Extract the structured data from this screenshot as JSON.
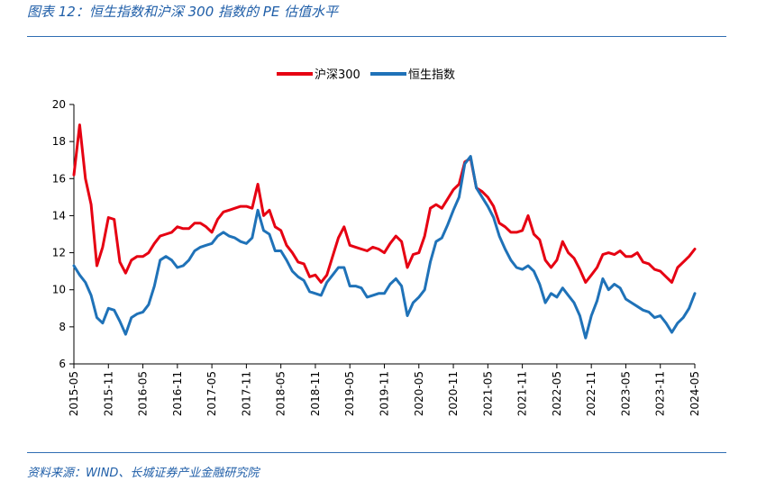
{
  "figure": {
    "title": "图表 12：恒生指数和沪深 300 指数的 PE 估值水平",
    "source": "资料来源：WIND、长城证券产业金融研究院"
  },
  "chart_data": {
    "type": "line",
    "title": "",
    "xlabel": "",
    "ylabel": "",
    "ylim": [
      6,
      20
    ],
    "yticks": [
      6,
      8,
      10,
      12,
      14,
      16,
      18,
      20
    ],
    "xlim": [
      "2015-05",
      "2024-05"
    ],
    "xticks": [
      "2015-05",
      "2015-11",
      "2016-05",
      "2016-11",
      "2017-05",
      "2017-11",
      "2018-05",
      "2018-11",
      "2019-05",
      "2019-11",
      "2020-05",
      "2020-11",
      "2021-05",
      "2021-11",
      "2022-05",
      "2022-11",
      "2023-05",
      "2023-11",
      "2024-05"
    ],
    "grid": false,
    "legend": "top-center",
    "series": [
      {
        "name": "沪深300",
        "color": "#e60012",
        "points": [
          [
            "2015-05",
            16.2
          ],
          [
            "2015-06",
            18.9
          ],
          [
            "2015-07",
            16.0
          ],
          [
            "2015-08",
            14.6
          ],
          [
            "2015-09",
            11.3
          ],
          [
            "2015-10",
            12.3
          ],
          [
            "2015-11",
            13.9
          ],
          [
            "2015-12",
            13.8
          ],
          [
            "2016-01",
            11.5
          ],
          [
            "2016-02",
            10.9
          ],
          [
            "2016-03",
            11.6
          ],
          [
            "2016-04",
            11.8
          ],
          [
            "2016-05",
            11.8
          ],
          [
            "2016-06",
            12.0
          ],
          [
            "2016-07",
            12.5
          ],
          [
            "2016-08",
            12.9
          ],
          [
            "2016-09",
            13.0
          ],
          [
            "2016-10",
            13.1
          ],
          [
            "2016-11",
            13.4
          ],
          [
            "2016-12",
            13.3
          ],
          [
            "2017-01",
            13.3
          ],
          [
            "2017-02",
            13.6
          ],
          [
            "2017-03",
            13.6
          ],
          [
            "2017-04",
            13.4
          ],
          [
            "2017-05",
            13.1
          ],
          [
            "2017-06",
            13.8
          ],
          [
            "2017-07",
            14.2
          ],
          [
            "2017-08",
            14.3
          ],
          [
            "2017-09",
            14.4
          ],
          [
            "2017-10",
            14.5
          ],
          [
            "2017-11",
            14.5
          ],
          [
            "2017-12",
            14.4
          ],
          [
            "2018-01",
            15.7
          ],
          [
            "2018-02",
            14.0
          ],
          [
            "2018-03",
            14.3
          ],
          [
            "2018-04",
            13.4
          ],
          [
            "2018-05",
            13.2
          ],
          [
            "2018-06",
            12.4
          ],
          [
            "2018-07",
            12.0
          ],
          [
            "2018-08",
            11.5
          ],
          [
            "2018-09",
            11.4
          ],
          [
            "2018-10",
            10.7
          ],
          [
            "2018-11",
            10.8
          ],
          [
            "2018-12",
            10.4
          ],
          [
            "2019-01",
            10.8
          ],
          [
            "2019-02",
            11.8
          ],
          [
            "2019-03",
            12.8
          ],
          [
            "2019-04",
            13.4
          ],
          [
            "2019-05",
            12.4
          ],
          [
            "2019-06",
            12.3
          ],
          [
            "2019-07",
            12.2
          ],
          [
            "2019-08",
            12.1
          ],
          [
            "2019-09",
            12.3
          ],
          [
            "2019-10",
            12.2
          ],
          [
            "2019-11",
            12.0
          ],
          [
            "2019-12",
            12.5
          ],
          [
            "2020-01",
            12.9
          ],
          [
            "2020-02",
            12.6
          ],
          [
            "2020-03",
            11.2
          ],
          [
            "2020-04",
            11.9
          ],
          [
            "2020-05",
            12.0
          ],
          [
            "2020-06",
            12.9
          ],
          [
            "2020-07",
            14.4
          ],
          [
            "2020-08",
            14.6
          ],
          [
            "2020-09",
            14.4
          ],
          [
            "2020-10",
            14.9
          ],
          [
            "2020-11",
            15.4
          ],
          [
            "2020-12",
            15.7
          ],
          [
            "2021-01",
            16.9
          ],
          [
            "2021-02",
            17.1
          ],
          [
            "2021-03",
            15.5
          ],
          [
            "2021-04",
            15.3
          ],
          [
            "2021-05",
            15.0
          ],
          [
            "2021-06",
            14.5
          ],
          [
            "2021-07",
            13.6
          ],
          [
            "2021-08",
            13.4
          ],
          [
            "2021-09",
            13.1
          ],
          [
            "2021-10",
            13.1
          ],
          [
            "2021-11",
            13.2
          ],
          [
            "2021-12",
            14.0
          ],
          [
            "2022-01",
            13.0
          ],
          [
            "2022-02",
            12.7
          ],
          [
            "2022-03",
            11.6
          ],
          [
            "2022-04",
            11.2
          ],
          [
            "2022-05",
            11.6
          ],
          [
            "2022-06",
            12.6
          ],
          [
            "2022-07",
            12.0
          ],
          [
            "2022-08",
            11.7
          ],
          [
            "2022-09",
            11.1
          ],
          [
            "2022-10",
            10.4
          ],
          [
            "2022-11",
            10.8
          ],
          [
            "2022-12",
            11.2
          ],
          [
            "2023-01",
            11.9
          ],
          [
            "2023-02",
            12.0
          ],
          [
            "2023-03",
            11.9
          ],
          [
            "2023-04",
            12.1
          ],
          [
            "2023-05",
            11.8
          ],
          [
            "2023-06",
            11.8
          ],
          [
            "2023-07",
            12.0
          ],
          [
            "2023-08",
            11.5
          ],
          [
            "2023-09",
            11.4
          ],
          [
            "2023-10",
            11.1
          ],
          [
            "2023-11",
            11.0
          ],
          [
            "2023-12",
            10.7
          ],
          [
            "2024-01",
            10.4
          ],
          [
            "2024-02",
            11.2
          ],
          [
            "2024-03",
            11.5
          ],
          [
            "2024-04",
            11.8
          ],
          [
            "2024-05",
            12.2
          ]
        ]
      },
      {
        "name": "恒生指数",
        "color": "#1f72b8",
        "points": [
          [
            "2015-05",
            11.3
          ],
          [
            "2015-06",
            10.8
          ],
          [
            "2015-07",
            10.4
          ],
          [
            "2015-08",
            9.7
          ],
          [
            "2015-09",
            8.5
          ],
          [
            "2015-10",
            8.2
          ],
          [
            "2015-11",
            9.0
          ],
          [
            "2015-12",
            8.9
          ],
          [
            "2016-01",
            8.3
          ],
          [
            "2016-02",
            7.6
          ],
          [
            "2016-03",
            8.5
          ],
          [
            "2016-04",
            8.7
          ],
          [
            "2016-05",
            8.8
          ],
          [
            "2016-06",
            9.2
          ],
          [
            "2016-07",
            10.2
          ],
          [
            "2016-08",
            11.6
          ],
          [
            "2016-09",
            11.8
          ],
          [
            "2016-10",
            11.6
          ],
          [
            "2016-11",
            11.2
          ],
          [
            "2016-12",
            11.3
          ],
          [
            "2017-01",
            11.6
          ],
          [
            "2017-02",
            12.1
          ],
          [
            "2017-03",
            12.3
          ],
          [
            "2017-04",
            12.4
          ],
          [
            "2017-05",
            12.5
          ],
          [
            "2017-06",
            12.9
          ],
          [
            "2017-07",
            13.1
          ],
          [
            "2017-08",
            12.9
          ],
          [
            "2017-09",
            12.8
          ],
          [
            "2017-10",
            12.6
          ],
          [
            "2017-11",
            12.5
          ],
          [
            "2017-12",
            12.8
          ],
          [
            "2018-01",
            14.3
          ],
          [
            "2018-02",
            13.2
          ],
          [
            "2018-03",
            13.0
          ],
          [
            "2018-04",
            12.1
          ],
          [
            "2018-05",
            12.1
          ],
          [
            "2018-06",
            11.6
          ],
          [
            "2018-07",
            11.0
          ],
          [
            "2018-08",
            10.7
          ],
          [
            "2018-09",
            10.5
          ],
          [
            "2018-10",
            9.9
          ],
          [
            "2018-11",
            9.8
          ],
          [
            "2018-12",
            9.7
          ],
          [
            "2019-01",
            10.4
          ],
          [
            "2019-02",
            10.8
          ],
          [
            "2019-03",
            11.2
          ],
          [
            "2019-04",
            11.2
          ],
          [
            "2019-05",
            10.2
          ],
          [
            "2019-06",
            10.2
          ],
          [
            "2019-07",
            10.1
          ],
          [
            "2019-08",
            9.6
          ],
          [
            "2019-09",
            9.7
          ],
          [
            "2019-10",
            9.8
          ],
          [
            "2019-11",
            9.8
          ],
          [
            "2019-12",
            10.3
          ],
          [
            "2020-01",
            10.6
          ],
          [
            "2020-02",
            10.2
          ],
          [
            "2020-03",
            8.6
          ],
          [
            "2020-04",
            9.3
          ],
          [
            "2020-05",
            9.6
          ],
          [
            "2020-06",
            10.0
          ],
          [
            "2020-07",
            11.5
          ],
          [
            "2020-08",
            12.6
          ],
          [
            "2020-09",
            12.8
          ],
          [
            "2020-10",
            13.5
          ],
          [
            "2020-11",
            14.3
          ],
          [
            "2020-12",
            15.0
          ],
          [
            "2021-01",
            16.8
          ],
          [
            "2021-02",
            17.2
          ],
          [
            "2021-03",
            15.5
          ],
          [
            "2021-04",
            15.0
          ],
          [
            "2021-05",
            14.5
          ],
          [
            "2021-06",
            13.9
          ],
          [
            "2021-07",
            12.9
          ],
          [
            "2021-08",
            12.2
          ],
          [
            "2021-09",
            11.6
          ],
          [
            "2021-10",
            11.2
          ],
          [
            "2021-11",
            11.1
          ],
          [
            "2021-12",
            11.3
          ],
          [
            "2022-01",
            11.0
          ],
          [
            "2022-02",
            10.3
          ],
          [
            "2022-03",
            9.3
          ],
          [
            "2022-04",
            9.8
          ],
          [
            "2022-05",
            9.6
          ],
          [
            "2022-06",
            10.1
          ],
          [
            "2022-07",
            9.7
          ],
          [
            "2022-08",
            9.3
          ],
          [
            "2022-09",
            8.6
          ],
          [
            "2022-10",
            7.4
          ],
          [
            "2022-11",
            8.6
          ],
          [
            "2022-12",
            9.4
          ],
          [
            "2023-01",
            10.6
          ],
          [
            "2023-02",
            10.0
          ],
          [
            "2023-03",
            10.3
          ],
          [
            "2023-04",
            10.1
          ],
          [
            "2023-05",
            9.5
          ],
          [
            "2023-06",
            9.3
          ],
          [
            "2023-07",
            9.1
          ],
          [
            "2023-08",
            8.9
          ],
          [
            "2023-09",
            8.8
          ],
          [
            "2023-10",
            8.5
          ],
          [
            "2023-11",
            8.6
          ],
          [
            "2023-12",
            8.2
          ],
          [
            "2024-01",
            7.7
          ],
          [
            "2024-02",
            8.2
          ],
          [
            "2024-03",
            8.5
          ],
          [
            "2024-04",
            9.0
          ],
          [
            "2024-05",
            9.8
          ]
        ]
      }
    ]
  }
}
